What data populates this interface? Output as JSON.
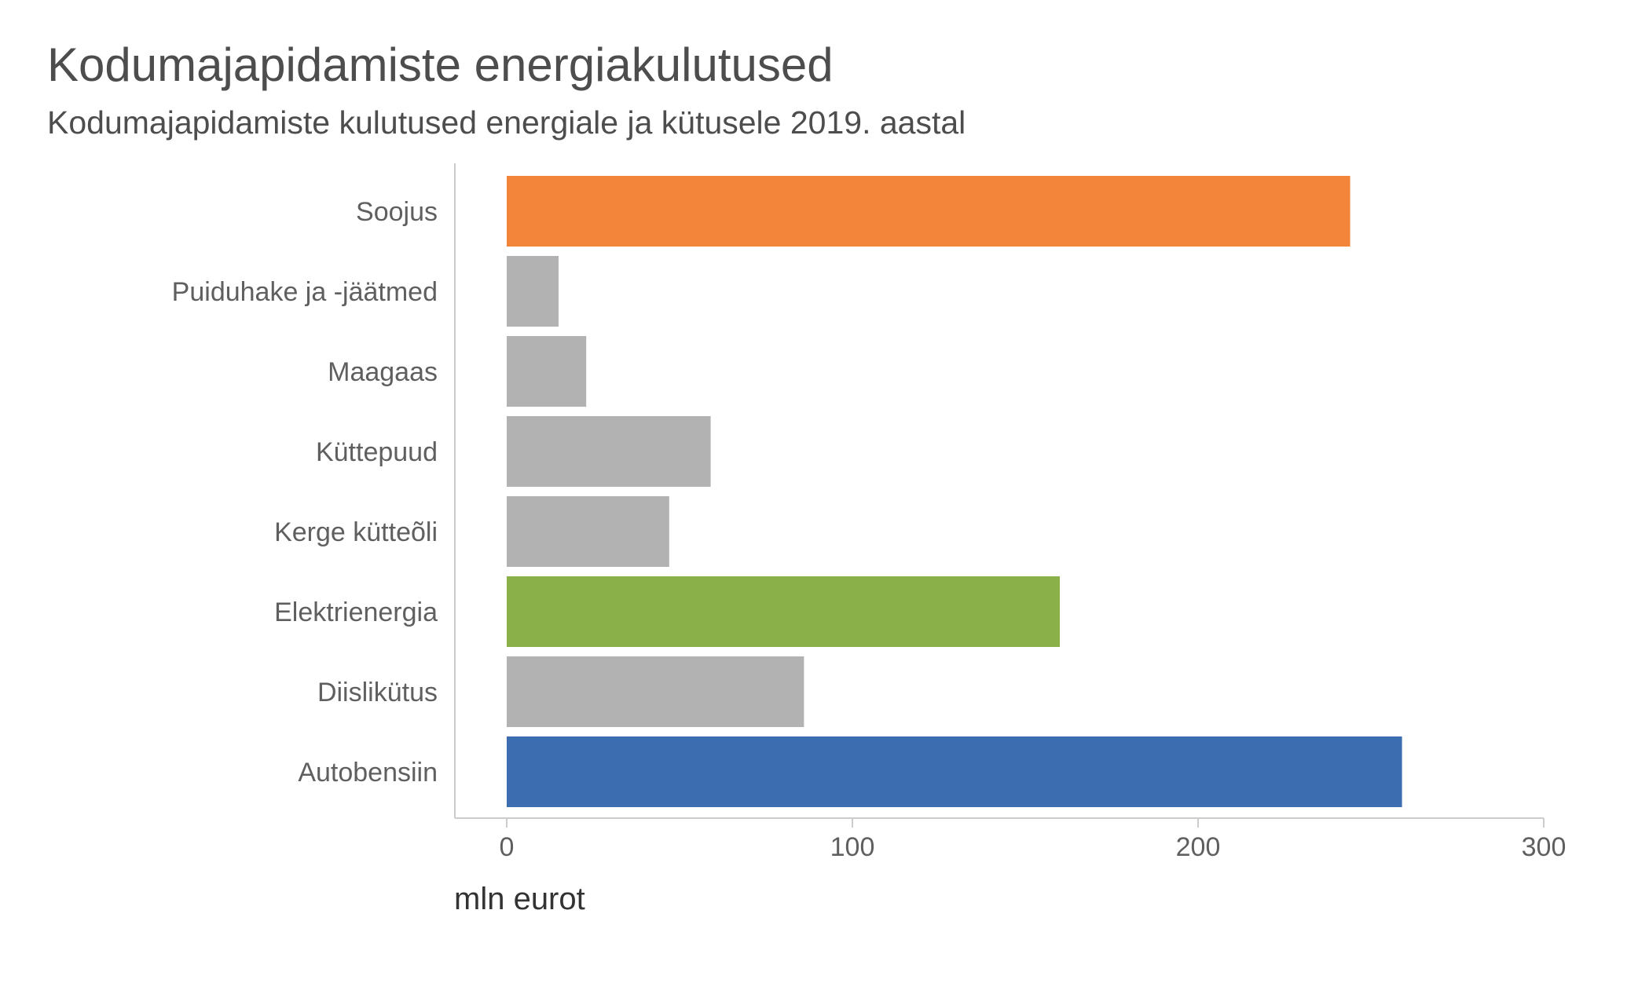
{
  "chart_data": {
    "type": "bar",
    "orientation": "horizontal",
    "title": "Kodumajapidamiste energiakulutused",
    "subtitle": "Kodumajapidamiste kulutused energiale ja kütusele 2019. aastal",
    "xlabel": "mln eurot",
    "ylabel": "",
    "xlim": [
      0,
      300
    ],
    "xticks": [
      0,
      100,
      200,
      300
    ],
    "grid": false,
    "categories": [
      "Soojus",
      "Puiduhake ja -jäätmed",
      "Maagaas",
      "Küttepuud",
      "Kerge kütteõli",
      "Elektrienergia",
      "Diislikütus",
      "Autobensiin"
    ],
    "values": [
      244,
      15,
      23,
      59,
      47,
      160,
      86,
      259
    ],
    "colors": [
      "#f2853a",
      "#b2b2b2",
      "#b2b2b2",
      "#b2b2b2",
      "#b2b2b2",
      "#8ab04a",
      "#b2b2b2",
      "#3b6db0"
    ],
    "axis_color": "#cccccc"
  }
}
